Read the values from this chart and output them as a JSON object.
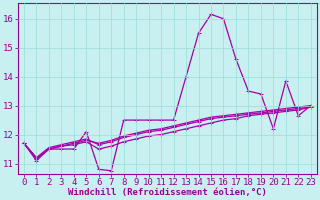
{
  "xlabel": "Windchill (Refroidissement éolien,°C)",
  "bg_color": "#c8f0f0",
  "line_color": "#aa00aa",
  "grid_color": "#99dddd",
  "axis_color": "#990099",
  "ylim": [
    10.65,
    16.55
  ],
  "xlim": [
    -0.5,
    23.5
  ],
  "yticks": [
    11,
    12,
    13,
    14,
    15,
    16
  ],
  "xticks": [
    0,
    1,
    2,
    3,
    4,
    5,
    6,
    7,
    8,
    9,
    10,
    11,
    12,
    13,
    14,
    15,
    16,
    17,
    18,
    19,
    20,
    21,
    22,
    23
  ],
  "series": [
    [
      11.7,
      11.1,
      11.5,
      11.5,
      11.5,
      12.1,
      10.8,
      10.75,
      12.5,
      12.5,
      12.5,
      12.5,
      12.5,
      14.0,
      15.5,
      16.15,
      16.0,
      14.6,
      13.5,
      13.4,
      12.2,
      13.85,
      12.65,
      13.0
    ],
    [
      11.7,
      11.15,
      11.5,
      11.6,
      11.65,
      11.75,
      11.5,
      11.6,
      11.75,
      11.85,
      11.95,
      12.0,
      12.1,
      12.2,
      12.3,
      12.4,
      12.5,
      12.55,
      12.65,
      12.7,
      12.75,
      12.8,
      12.85,
      12.95
    ],
    [
      11.7,
      11.2,
      11.55,
      11.65,
      11.75,
      11.85,
      11.65,
      11.75,
      11.9,
      12.0,
      12.1,
      12.15,
      12.25,
      12.35,
      12.45,
      12.55,
      12.6,
      12.65,
      12.7,
      12.75,
      12.8,
      12.85,
      12.9,
      12.95
    ],
    [
      11.7,
      11.2,
      11.5,
      11.6,
      11.7,
      11.8,
      11.7,
      11.8,
      11.95,
      12.05,
      12.15,
      12.2,
      12.3,
      12.4,
      12.5,
      12.6,
      12.65,
      12.7,
      12.75,
      12.8,
      12.85,
      12.9,
      12.95,
      13.0
    ]
  ],
  "marker": "+",
  "markersize": 3,
  "linewidth": 0.9,
  "font_color": "#990099",
  "font_size": 6.5,
  "tick_font_size": 6.5
}
